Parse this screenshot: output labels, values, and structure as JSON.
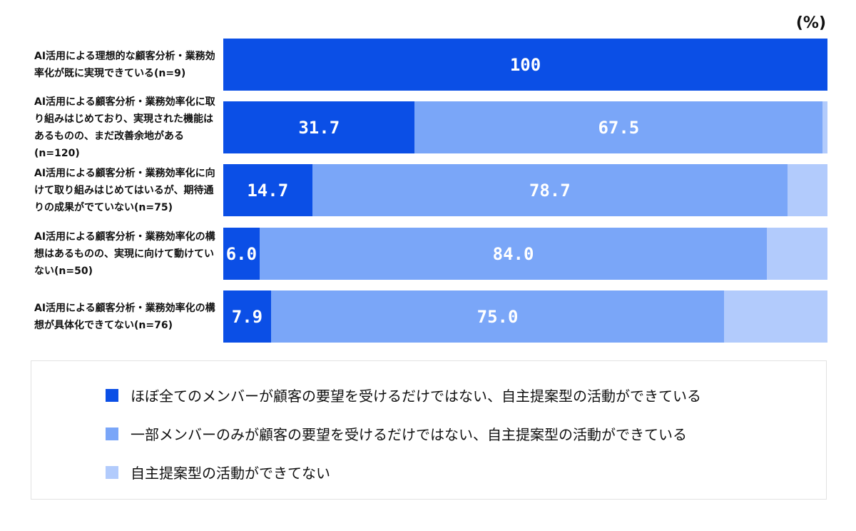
{
  "chart_data": {
    "type": "bar",
    "orientation": "horizontal-stacked-100",
    "unit_label": "(%)",
    "categories": [
      "AI活用による理想的な顧客分析・業務効率化が既に実現できている(n=9)",
      "AI活用による顧客分析・業務効率化に取り組みはじめており、実現された機能はあるものの、まだ改善余地がある(n=120)",
      "AI活用による顧客分析・業務効率化に向けて取り組みはじめてはいるが、期待通りの成果がでていない(n=75)",
      "AI活用による顧客分析・業務効率化の構想はあるものの、実現に向けて動けていない(n=50)",
      "AI活用による顧客分析・業務効率化の構想が具体化できてない(n=76)"
    ],
    "series": [
      {
        "name": "ほぼ全てのメンバーが顧客の要望を受けるだけではない、自主提案型の活動ができている",
        "color": "#0b4fe6",
        "values": [
          100,
          31.7,
          14.7,
          6.0,
          7.9
        ],
        "labels": [
          "100",
          "31.7",
          "14.7",
          "6.0",
          "7.9"
        ]
      },
      {
        "name": "一部メンバーのみが顧客の要望を受けるだけではない、自主提案型の活動ができている",
        "color": "#7aa6f8",
        "values": [
          0,
          67.5,
          78.7,
          84.0,
          75.0
        ],
        "labels": [
          "",
          "67.5",
          "78.7",
          "84.0",
          "75.0"
        ]
      },
      {
        "name": "自主提案型の活動ができてない",
        "color": "#b2cbfc",
        "values": [
          0,
          0.8,
          6.6,
          10.0,
          17.1
        ],
        "labels": [
          "",
          "",
          "",
          "",
          ""
        ]
      }
    ],
    "xlim": [
      0,
      100
    ],
    "legend_position": "bottom"
  }
}
